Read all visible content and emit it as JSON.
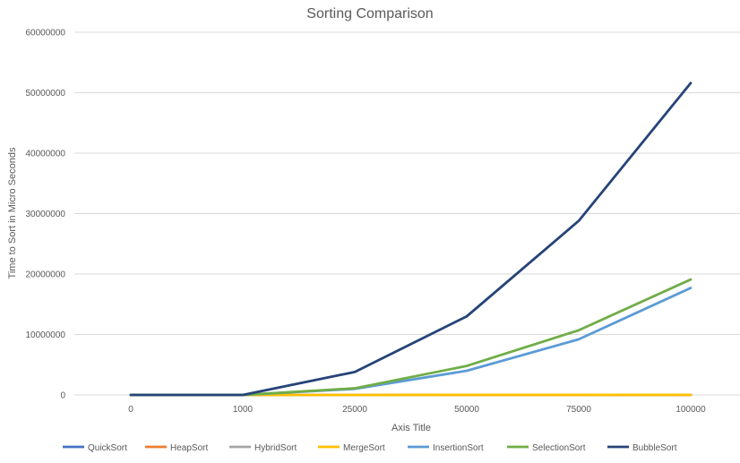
{
  "chart_data": {
    "type": "line",
    "title": "Sorting Comparison",
    "xlabel": "Axis Title",
    "ylabel": "Time to Sort in Micro Seconds",
    "categories": [
      "0",
      "1000",
      "25000",
      "50000",
      "75000",
      "100000"
    ],
    "ylim": [
      0,
      60000000
    ],
    "yticks": [
      "0",
      "10000000",
      "20000000",
      "30000000",
      "40000000",
      "50000000",
      "60000000"
    ],
    "grid": true,
    "legend_position": "bottom",
    "series": [
      {
        "name": "QuickSort",
        "color": "#4472c4",
        "values": [
          0,
          0,
          2000,
          5000,
          8000,
          11000
        ]
      },
      {
        "name": "HeapSort",
        "color": "#ed7d31",
        "values": [
          0,
          0,
          3000,
          6000,
          9000,
          13000
        ]
      },
      {
        "name": "HybridSort",
        "color": "#a5a5a5",
        "values": [
          0,
          0,
          2000,
          4000,
          7000,
          10000
        ]
      },
      {
        "name": "MergeSort",
        "color": "#ffc000",
        "values": [
          0,
          0,
          4000,
          8000,
          12000,
          16000
        ]
      },
      {
        "name": "InsertionSort",
        "color": "#5b9bd5",
        "values": [
          0,
          0,
          1000000,
          4000000,
          9200000,
          17700000
        ]
      },
      {
        "name": "SelectionSort",
        "color": "#70ad47",
        "values": [
          0,
          0,
          1100000,
          4800000,
          10700000,
          19100000
        ]
      },
      {
        "name": "BubbleSort",
        "color": "#264478",
        "values": [
          0,
          0,
          3800000,
          13000000,
          28800000,
          51600000
        ]
      }
    ]
  }
}
